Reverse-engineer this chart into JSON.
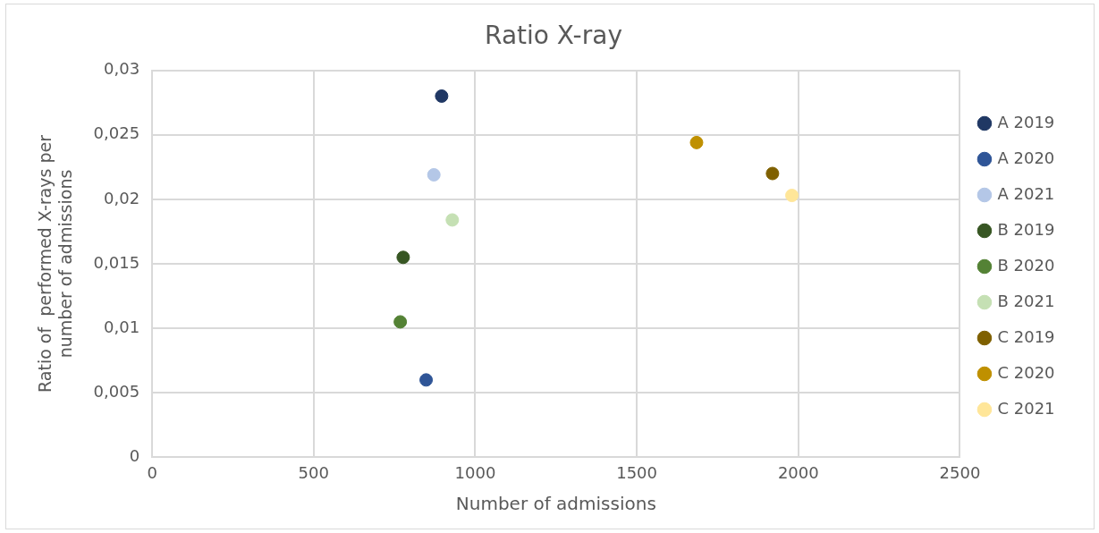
{
  "chart_data": {
    "type": "scatter",
    "title": "Ratio X-ray",
    "xlabel": "Number of admissions",
    "ylabel": "Ratio of  performed X-rays per number of admissions",
    "xlim": [
      0,
      2500
    ],
    "xticks": [
      {
        "value": 0,
        "label": "0"
      },
      {
        "value": 500,
        "label": "500"
      },
      {
        "value": 1000,
        "label": "1000"
      },
      {
        "value": 1500,
        "label": "1500"
      },
      {
        "value": 2000,
        "label": "2000"
      },
      {
        "value": 2500,
        "label": "2500"
      }
    ],
    "ylim": [
      0,
      0.03
    ],
    "yticks": [
      {
        "value": 0,
        "label": "0"
      },
      {
        "value": 0.005,
        "label": "0,005"
      },
      {
        "value": 0.01,
        "label": "0,01"
      },
      {
        "value": 0.015,
        "label": "0,015"
      },
      {
        "value": 0.02,
        "label": "0,02"
      },
      {
        "value": 0.025,
        "label": "0,025"
      },
      {
        "value": 0.03,
        "label": "0,03"
      }
    ],
    "grid": true,
    "legend": "right",
    "marker": "circle",
    "series": [
      {
        "name": "A 2019",
        "color": "#203864",
        "x": [
          896
        ],
        "values": [
          0.028
        ]
      },
      {
        "name": "A 2020",
        "color": "#2f5597",
        "x": [
          848
        ],
        "values": [
          0.006
        ]
      },
      {
        "name": "A 2021",
        "color": "#b4c7e7",
        "x": [
          872
        ],
        "values": [
          0.0219
        ]
      },
      {
        "name": "B 2019",
        "color": "#375623",
        "x": [
          777
        ],
        "values": [
          0.0155
        ]
      },
      {
        "name": "B 2020",
        "color": "#548235",
        "x": [
          768
        ],
        "values": [
          0.0105
        ]
      },
      {
        "name": "B 2021",
        "color": "#c5e0b4",
        "x": [
          929
        ],
        "values": [
          0.0184
        ]
      },
      {
        "name": "C 2019",
        "color": "#7f6000",
        "x": [
          1920
        ],
        "values": [
          0.022
        ]
      },
      {
        "name": "C 2020",
        "color": "#bf9000",
        "x": [
          1685
        ],
        "values": [
          0.0244
        ]
      },
      {
        "name": "C 2021",
        "color": "#ffe699",
        "x": [
          1980
        ],
        "values": [
          0.0203
        ]
      }
    ]
  }
}
